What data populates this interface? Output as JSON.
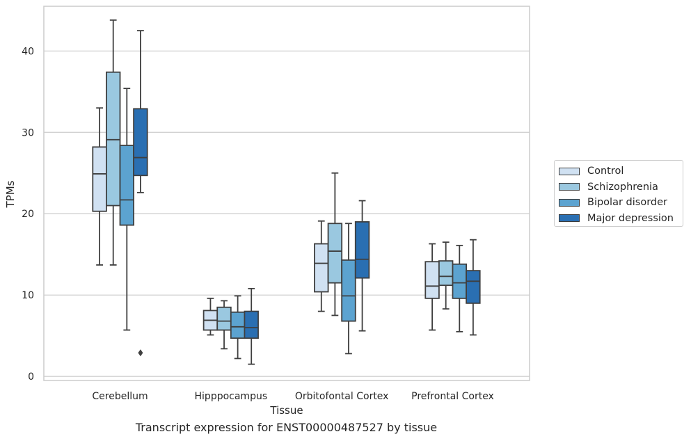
{
  "chart_data": {
    "type": "box",
    "title": "",
    "caption": "Transcript expression for ENST00000487527 by tissue",
    "xlabel": "Tissue",
    "ylabel": "TPMs",
    "ylim": [
      -0.5,
      45.5
    ],
    "yticks": [
      0,
      10,
      20,
      30,
      40
    ],
    "grid": "horizontal",
    "legend_position": "right",
    "categories": [
      "Cerebellum",
      "Hipppocampus",
      "Orbitofontal Cortex",
      "Prefrontal Cortex"
    ],
    "series": [
      {
        "name": "Control",
        "color": "#d0e1f2",
        "boxes": [
          {
            "whisker_low": 13.7,
            "q1": 20.3,
            "median": 24.9,
            "q3": 28.2,
            "whisker_high": 33.0,
            "outliers": []
          },
          {
            "whisker_low": 5.1,
            "q1": 5.7,
            "median": 6.9,
            "q3": 8.1,
            "whisker_high": 9.6,
            "outliers": []
          },
          {
            "whisker_low": 8.0,
            "q1": 10.4,
            "median": 13.9,
            "q3": 16.3,
            "whisker_high": 19.1,
            "outliers": []
          },
          {
            "whisker_low": 5.7,
            "q1": 9.6,
            "median": 11.1,
            "q3": 14.1,
            "whisker_high": 16.3,
            "outliers": []
          }
        ]
      },
      {
        "name": "Schizophrenia",
        "color": "#9ac8e0",
        "boxes": [
          {
            "whisker_low": 13.7,
            "q1": 21.0,
            "median": 29.1,
            "q3": 37.4,
            "whisker_high": 43.8,
            "outliers": []
          },
          {
            "whisker_low": 3.4,
            "q1": 5.7,
            "median": 6.8,
            "q3": 8.5,
            "whisker_high": 9.3,
            "outliers": []
          },
          {
            "whisker_low": 7.5,
            "q1": 11.5,
            "median": 15.4,
            "q3": 18.8,
            "whisker_high": 25.0,
            "outliers": []
          },
          {
            "whisker_low": 8.3,
            "q1": 11.2,
            "median": 12.3,
            "q3": 14.2,
            "whisker_high": 16.5,
            "outliers": []
          }
        ]
      },
      {
        "name": "Bipolar disorder",
        "color": "#5ca3d0",
        "boxes": [
          {
            "whisker_low": 5.7,
            "q1": 18.6,
            "median": 21.7,
            "q3": 28.4,
            "whisker_high": 35.4,
            "outliers": []
          },
          {
            "whisker_low": 2.2,
            "q1": 4.7,
            "median": 6.1,
            "q3": 7.9,
            "whisker_high": 9.9,
            "outliers": []
          },
          {
            "whisker_low": 2.8,
            "q1": 6.8,
            "median": 9.9,
            "q3": 14.3,
            "whisker_high": 18.8,
            "outliers": []
          },
          {
            "whisker_low": 5.5,
            "q1": 9.6,
            "median": 11.5,
            "q3": 13.8,
            "whisker_high": 16.1,
            "outliers": []
          }
        ]
      },
      {
        "name": "Major depression",
        "color": "#2a6fb2",
        "boxes": [
          {
            "whisker_low": 22.6,
            "q1": 24.7,
            "median": 26.9,
            "q3": 32.9,
            "whisker_high": 42.5,
            "outliers": [
              2.9
            ]
          },
          {
            "whisker_low": 1.5,
            "q1": 4.7,
            "median": 6.0,
            "q3": 8.0,
            "whisker_high": 10.8,
            "outliers": []
          },
          {
            "whisker_low": 5.6,
            "q1": 12.1,
            "median": 14.4,
            "q3": 19.0,
            "whisker_high": 21.6,
            "outliers": []
          },
          {
            "whisker_low": 5.1,
            "q1": 9.0,
            "median": 11.7,
            "q3": 13.0,
            "whisker_high": 16.8,
            "outliers": []
          }
        ]
      }
    ]
  }
}
